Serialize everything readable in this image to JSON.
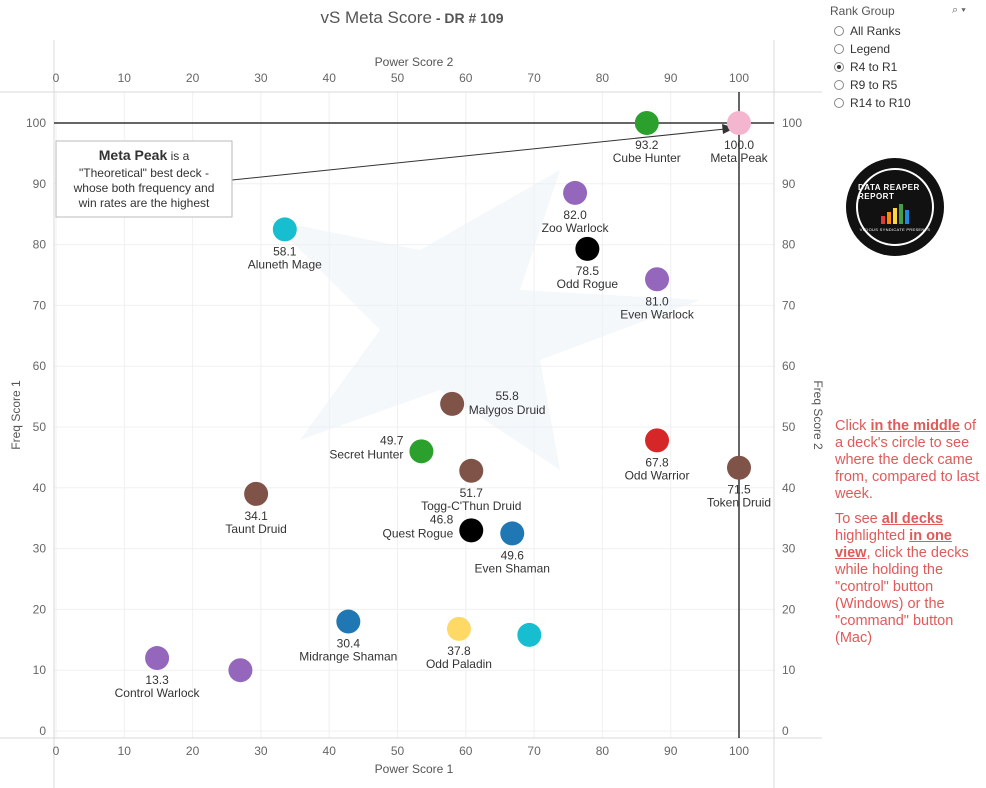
{
  "header": {
    "title": "vS Meta Score",
    "sep": " - ",
    "subtitle": "DR # 109"
  },
  "rank_group": {
    "title": "Rank Group",
    "options": [
      {
        "label": "All Ranks",
        "selected": false
      },
      {
        "label": "Legend",
        "selected": false
      },
      {
        "label": "R4 to R1",
        "selected": true
      },
      {
        "label": "R9 to R5",
        "selected": false
      },
      {
        "label": "R14 to R10",
        "selected": false
      }
    ]
  },
  "logo": {
    "line1": "DATA REAPER REPORT",
    "line2": "VICIOUS SYNDICATE PRESENTS"
  },
  "note": {
    "p1_pre": "Click ",
    "p1_bold": "in the middle",
    "p1_post": " of a deck's circle to see where the deck came from, compared to last week.",
    "p2_pre": "To see ",
    "p2_bold1": "all decks",
    "p2_mid": " highlighted ",
    "p2_bold2": "in one view",
    "p2_post": ", click the decks while holding the \"control\" button (Windows) or the \"command\" button (Mac)"
  },
  "annotation": {
    "bold": "Meta Peak",
    "rest1": " is a",
    "line2": "\"Theoretical\" best deck -",
    "line3": "whose both frequency and",
    "line4": "win rates are the highest"
  },
  "chart_data": {
    "type": "scatter",
    "title": "vS Meta Score - DR # 109",
    "xlabel_bottom": "Power Score 1",
    "xlabel_top": "Power Score 2",
    "ylabel_left": "Freq Score 1",
    "ylabel_right": "Freq Score 2",
    "xlim": [
      0,
      105
    ],
    "ylim": [
      -1,
      105
    ],
    "x_ticks": [
      0,
      10,
      20,
      30,
      40,
      50,
      60,
      70,
      80,
      90,
      100
    ],
    "y_ticks": [
      0,
      10,
      20,
      30,
      40,
      50,
      60,
      70,
      80,
      90,
      100
    ],
    "reference_lines": {
      "x": 100,
      "y": 100
    },
    "grid": true,
    "points": [
      {
        "name": "Cube Hunter",
        "score": "93.2",
        "x": 86.5,
        "y": 100,
        "color": "#2ca02c"
      },
      {
        "name": "Meta Peak",
        "score": "100.0",
        "x": 100,
        "y": 100,
        "color": "#f4b6cf"
      },
      {
        "name": "Zoo Warlock",
        "score": "82.0",
        "x": 76,
        "y": 88.5,
        "color": "#9467bd"
      },
      {
        "name": "Aluneth Mage",
        "score": "58.1",
        "x": 33.5,
        "y": 82.5,
        "color": "#17becf"
      },
      {
        "name": "Odd Rogue",
        "score": "78.5",
        "x": 77.8,
        "y": 79.3,
        "color": "#000000"
      },
      {
        "name": "Even Warlock",
        "score": "81.0",
        "x": 88,
        "y": 74.3,
        "color": "#9467bd"
      },
      {
        "name": "Malygos Druid",
        "score": "55.8",
        "x": 58,
        "y": 53.8,
        "color": "#7f5348"
      },
      {
        "name": "Secret Hunter",
        "score": "49.7",
        "x": 53.5,
        "y": 46,
        "color": "#2ca02c"
      },
      {
        "name": "Odd Warrior",
        "score": "67.8",
        "x": 88,
        "y": 47.8,
        "color": "#d62728"
      },
      {
        "name": "Togg-C'Thun Druid",
        "score": "51.7",
        "x": 60.8,
        "y": 42.8,
        "color": "#7f5348"
      },
      {
        "name": "Token Druid",
        "score": "71.5",
        "x": 100,
        "y": 43.3,
        "color": "#7f5348"
      },
      {
        "name": "Taunt Druid",
        "score": "34.1",
        "x": 29.3,
        "y": 39,
        "color": "#7f5348"
      },
      {
        "name": "Quest Rogue",
        "score": "46.8",
        "x": 60.8,
        "y": 33,
        "color": "#000000"
      },
      {
        "name": "Even Shaman",
        "score": "49.6",
        "x": 66.8,
        "y": 32.5,
        "color": "#1f77b4"
      },
      {
        "name": "Midrange Shaman",
        "score": "30.4",
        "x": 42.8,
        "y": 18,
        "color": "#1f77b4"
      },
      {
        "name": "Odd Paladin",
        "score": "37.8",
        "x": 59,
        "y": 16.8,
        "color": "#ffd966"
      },
      {
        "name": "",
        "score": "",
        "x": 69.3,
        "y": 15.8,
        "color": "#17becf"
      },
      {
        "name": "Control Warlock",
        "score": "13.3",
        "x": 14.8,
        "y": 12,
        "color": "#9467bd"
      },
      {
        "name": "",
        "score": "",
        "x": 27,
        "y": 10,
        "color": "#9467bd"
      }
    ]
  }
}
